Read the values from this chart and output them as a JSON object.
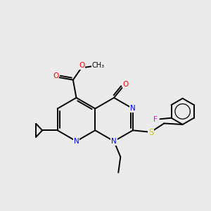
{
  "background_color": "#ebebeb",
  "bond_color": "#000000",
  "atom_colors": {
    "N": "#0000ff",
    "O": "#ff0000",
    "S": "#cccc00",
    "F": "#ee00ee",
    "C": "#000000"
  },
  "figsize": [
    3.0,
    3.0
  ],
  "dpi": 100
}
